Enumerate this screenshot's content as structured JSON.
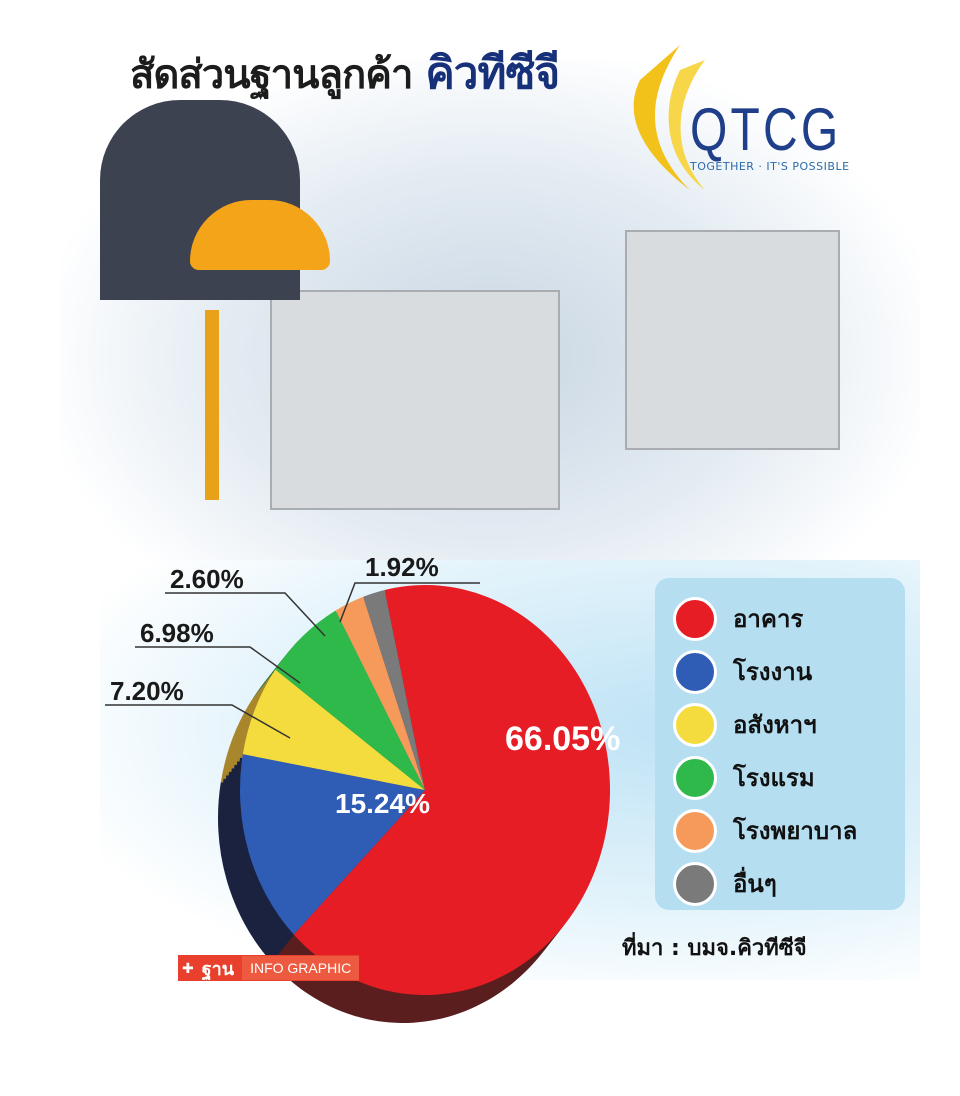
{
  "title": {
    "main": "สัดส่วนฐานลูกค้า",
    "brand": "คิวทีซีจี"
  },
  "logo": {
    "name": "QTCG",
    "tagline": "TOGETHER · IT'S POSSIBLE"
  },
  "source": "ที่มา : บมจ.คิวทีซีจี",
  "badge": {
    "brand": "ฐาน",
    "label": "INFO GRAPHIC"
  },
  "chart_data": {
    "type": "pie",
    "title": "สัดส่วนฐานลูกค้า คิวทีซีจี",
    "legend_position": "right",
    "slices": [
      {
        "name": "อาคาร",
        "value": 66.05,
        "label": "66.05%",
        "color": "#e61d25",
        "side": "#5a1e1e"
      },
      {
        "name": "โรงงาน",
        "value": 15.24,
        "label": "15.24%",
        "color": "#2f5db5",
        "side": "#1a2240"
      },
      {
        "name": "อสังหาฯ",
        "value": 7.2,
        "label": "7.20%",
        "color": "#f4dc3e",
        "side": "#a8862c"
      },
      {
        "name": "โรงแรม",
        "value": 6.98,
        "label": "6.98%",
        "color": "#2fb94a",
        "side": "#2a7a3a"
      },
      {
        "name": "โรงพยาบาล",
        "value": 2.6,
        "label": "2.60%",
        "color": "#f59a5b",
        "side": "#b06838"
      },
      {
        "name": "อื่นๆ",
        "value": 1.92,
        "label": "1.92%",
        "color": "#7a7a7a",
        "side": "#4a4a4a"
      }
    ]
  }
}
